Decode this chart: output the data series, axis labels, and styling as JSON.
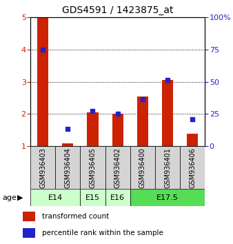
{
  "title": "GDS4591 / 1423875_at",
  "samples": [
    "GSM936403",
    "GSM936404",
    "GSM936405",
    "GSM936402",
    "GSM936400",
    "GSM936401",
    "GSM936406"
  ],
  "red_values": [
    5.0,
    1.1,
    2.05,
    2.0,
    2.55,
    3.05,
    1.4
  ],
  "blue_values": [
    4.0,
    1.55,
    2.1,
    2.0,
    2.45,
    3.05,
    1.85
  ],
  "ylim_left": [
    1,
    5
  ],
  "ylim_right": [
    0,
    100
  ],
  "yticks_left": [
    1,
    2,
    3,
    4,
    5
  ],
  "yticks_right": [
    0,
    25,
    50,
    75,
    100
  ],
  "ytick_labels_right": [
    "0",
    "25",
    "50",
    "75",
    "100%"
  ],
  "age_groups": [
    {
      "label": "E14",
      "start": 0,
      "end": 2,
      "color": "#ccffcc"
    },
    {
      "label": "E15",
      "start": 2,
      "end": 3,
      "color": "#ccffcc"
    },
    {
      "label": "E16",
      "start": 3,
      "end": 4,
      "color": "#ccffcc"
    },
    {
      "label": "E17.5",
      "start": 4,
      "end": 7,
      "color": "#55dd55"
    }
  ],
  "bar_color": "#cc2200",
  "marker_color": "#2222cc",
  "bar_width": 0.45,
  "legend_labels": [
    "transformed count",
    "percentile rank within the sample"
  ],
  "legend_colors": [
    "#cc2200",
    "#2222cc"
  ],
  "age_label": "age",
  "sample_bg": "#d4d4d4"
}
